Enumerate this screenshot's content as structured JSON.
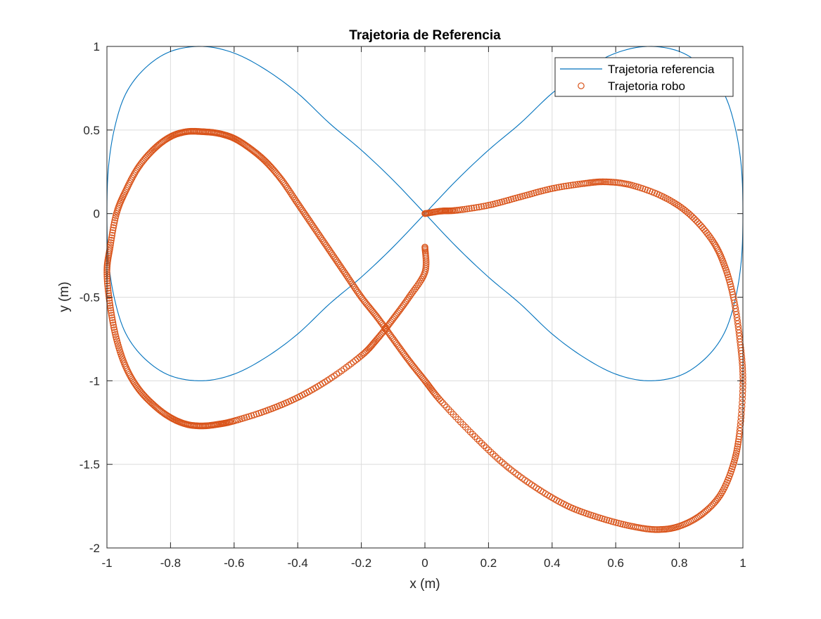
{
  "chart_data": {
    "type": "line",
    "title": "Trajetoria de Referencia",
    "xlabel": "x (m)",
    "ylabel": "y (m)",
    "xlim": [
      -1,
      1
    ],
    "ylim": [
      -2,
      1
    ],
    "xticks": [
      -1,
      -0.8,
      -0.6,
      -0.4,
      -0.2,
      0,
      0.2,
      0.4,
      0.6,
      0.8,
      1
    ],
    "xtick_labels": [
      "-1",
      "-0.8",
      "-0.6",
      "-0.4",
      "-0.2",
      "0",
      "0.2",
      "0.4",
      "0.6",
      "0.8",
      "1"
    ],
    "yticks": [
      -2,
      -1.5,
      -1,
      -0.5,
      0,
      0.5,
      1
    ],
    "ytick_labels": [
      "-2",
      "-1.5",
      "-1",
      "-0.5",
      "0",
      "0.5",
      "1"
    ],
    "grid": true,
    "legend_position": "top-right",
    "series": [
      {
        "name": "Trajetoria referencia",
        "style": "line",
        "color": "#0072BD",
        "points": [
          [
            0,
            0
          ],
          [
            0.1,
            0.2
          ],
          [
            0.2,
            0.38
          ],
          [
            0.3,
            0.54
          ],
          [
            0.4,
            0.72
          ],
          [
            0.5,
            0.86
          ],
          [
            0.6,
            0.96
          ],
          [
            0.7,
            1.0
          ],
          [
            0.8,
            0.97
          ],
          [
            0.88,
            0.87
          ],
          [
            0.94,
            0.72
          ],
          [
            0.975,
            0.52
          ],
          [
            0.995,
            0.28
          ],
          [
            1.0,
            0
          ],
          [
            0.995,
            -0.28
          ],
          [
            0.975,
            -0.52
          ],
          [
            0.94,
            -0.72
          ],
          [
            0.88,
            -0.87
          ],
          [
            0.8,
            -0.97
          ],
          [
            0.7,
            -1.0
          ],
          [
            0.6,
            -0.96
          ],
          [
            0.5,
            -0.86
          ],
          [
            0.4,
            -0.72
          ],
          [
            0.3,
            -0.54
          ],
          [
            0.2,
            -0.38
          ],
          [
            0.1,
            -0.2
          ],
          [
            0,
            0
          ],
          [
            -0.1,
            0.2
          ],
          [
            -0.2,
            0.38
          ],
          [
            -0.3,
            0.54
          ],
          [
            -0.4,
            0.72
          ],
          [
            -0.5,
            0.86
          ],
          [
            -0.6,
            0.96
          ],
          [
            -0.7,
            1.0
          ],
          [
            -0.8,
            0.97
          ],
          [
            -0.88,
            0.87
          ],
          [
            -0.94,
            0.72
          ],
          [
            -0.975,
            0.52
          ],
          [
            -0.995,
            0.28
          ],
          [
            -1.0,
            0
          ],
          [
            -0.995,
            -0.28
          ],
          [
            -0.975,
            -0.52
          ],
          [
            -0.94,
            -0.72
          ],
          [
            -0.88,
            -0.87
          ],
          [
            -0.8,
            -0.97
          ],
          [
            -0.7,
            -1.0
          ],
          [
            -0.6,
            -0.96
          ],
          [
            -0.5,
            -0.86
          ],
          [
            -0.4,
            -0.72
          ],
          [
            -0.3,
            -0.54
          ],
          [
            -0.2,
            -0.38
          ],
          [
            -0.1,
            -0.2
          ],
          [
            0,
            0
          ]
        ]
      },
      {
        "name": "Trajetoria robo",
        "style": "markers",
        "marker": "circle",
        "color": "#D95319",
        "points": [
          [
            0,
            0
          ],
          [
            0.05,
            0.015
          ],
          [
            0.1,
            0.02
          ],
          [
            0.2,
            0.05
          ],
          [
            0.3,
            0.1
          ],
          [
            0.4,
            0.15
          ],
          [
            0.5,
            0.18
          ],
          [
            0.57,
            0.19
          ],
          [
            0.65,
            0.17
          ],
          [
            0.75,
            0.1
          ],
          [
            0.83,
            0.0
          ],
          [
            0.9,
            -0.15
          ],
          [
            0.94,
            -0.3
          ],
          [
            0.97,
            -0.5
          ],
          [
            0.99,
            -0.75
          ],
          [
            1.0,
            -1.0
          ],
          [
            0.99,
            -1.3
          ],
          [
            0.97,
            -1.5
          ],
          [
            0.93,
            -1.68
          ],
          [
            0.87,
            -1.8
          ],
          [
            0.8,
            -1.87
          ],
          [
            0.73,
            -1.89
          ],
          [
            0.65,
            -1.87
          ],
          [
            0.55,
            -1.82
          ],
          [
            0.45,
            -1.75
          ],
          [
            0.35,
            -1.64
          ],
          [
            0.25,
            -1.5
          ],
          [
            0.15,
            -1.32
          ],
          [
            0.05,
            -1.12
          ],
          [
            0.0,
            -1.0
          ],
          [
            -0.05,
            -0.88
          ],
          [
            -0.1,
            -0.75
          ],
          [
            -0.15,
            -0.62
          ],
          [
            -0.2,
            -0.5
          ],
          [
            -0.25,
            -0.36
          ],
          [
            -0.3,
            -0.22
          ],
          [
            -0.35,
            -0.08
          ],
          [
            -0.4,
            0.06
          ],
          [
            -0.45,
            0.2
          ],
          [
            -0.5,
            0.31
          ],
          [
            -0.55,
            0.39
          ],
          [
            -0.6,
            0.45
          ],
          [
            -0.65,
            0.48
          ],
          [
            -0.7,
            0.49
          ],
          [
            -0.75,
            0.49
          ],
          [
            -0.8,
            0.46
          ],
          [
            -0.85,
            0.39
          ],
          [
            -0.9,
            0.28
          ],
          [
            -0.94,
            0.14
          ],
          [
            -0.97,
            0.0
          ],
          [
            -0.99,
            -0.2
          ],
          [
            -1.0,
            -0.35
          ],
          [
            -0.99,
            -0.55
          ],
          [
            -0.97,
            -0.75
          ],
          [
            -0.94,
            -0.92
          ],
          [
            -0.9,
            -1.05
          ],
          [
            -0.85,
            -1.15
          ],
          [
            -0.8,
            -1.22
          ],
          [
            -0.75,
            -1.26
          ],
          [
            -0.7,
            -1.27
          ],
          [
            -0.65,
            -1.26
          ],
          [
            -0.6,
            -1.24
          ],
          [
            -0.5,
            -1.18
          ],
          [
            -0.4,
            -1.1
          ],
          [
            -0.3,
            -0.99
          ],
          [
            -0.2,
            -0.85
          ],
          [
            -0.15,
            -0.75
          ],
          [
            -0.1,
            -0.63
          ],
          [
            -0.05,
            -0.5
          ],
          [
            0,
            -0.35
          ],
          [
            0.0,
            -0.2
          ]
        ]
      }
    ]
  }
}
